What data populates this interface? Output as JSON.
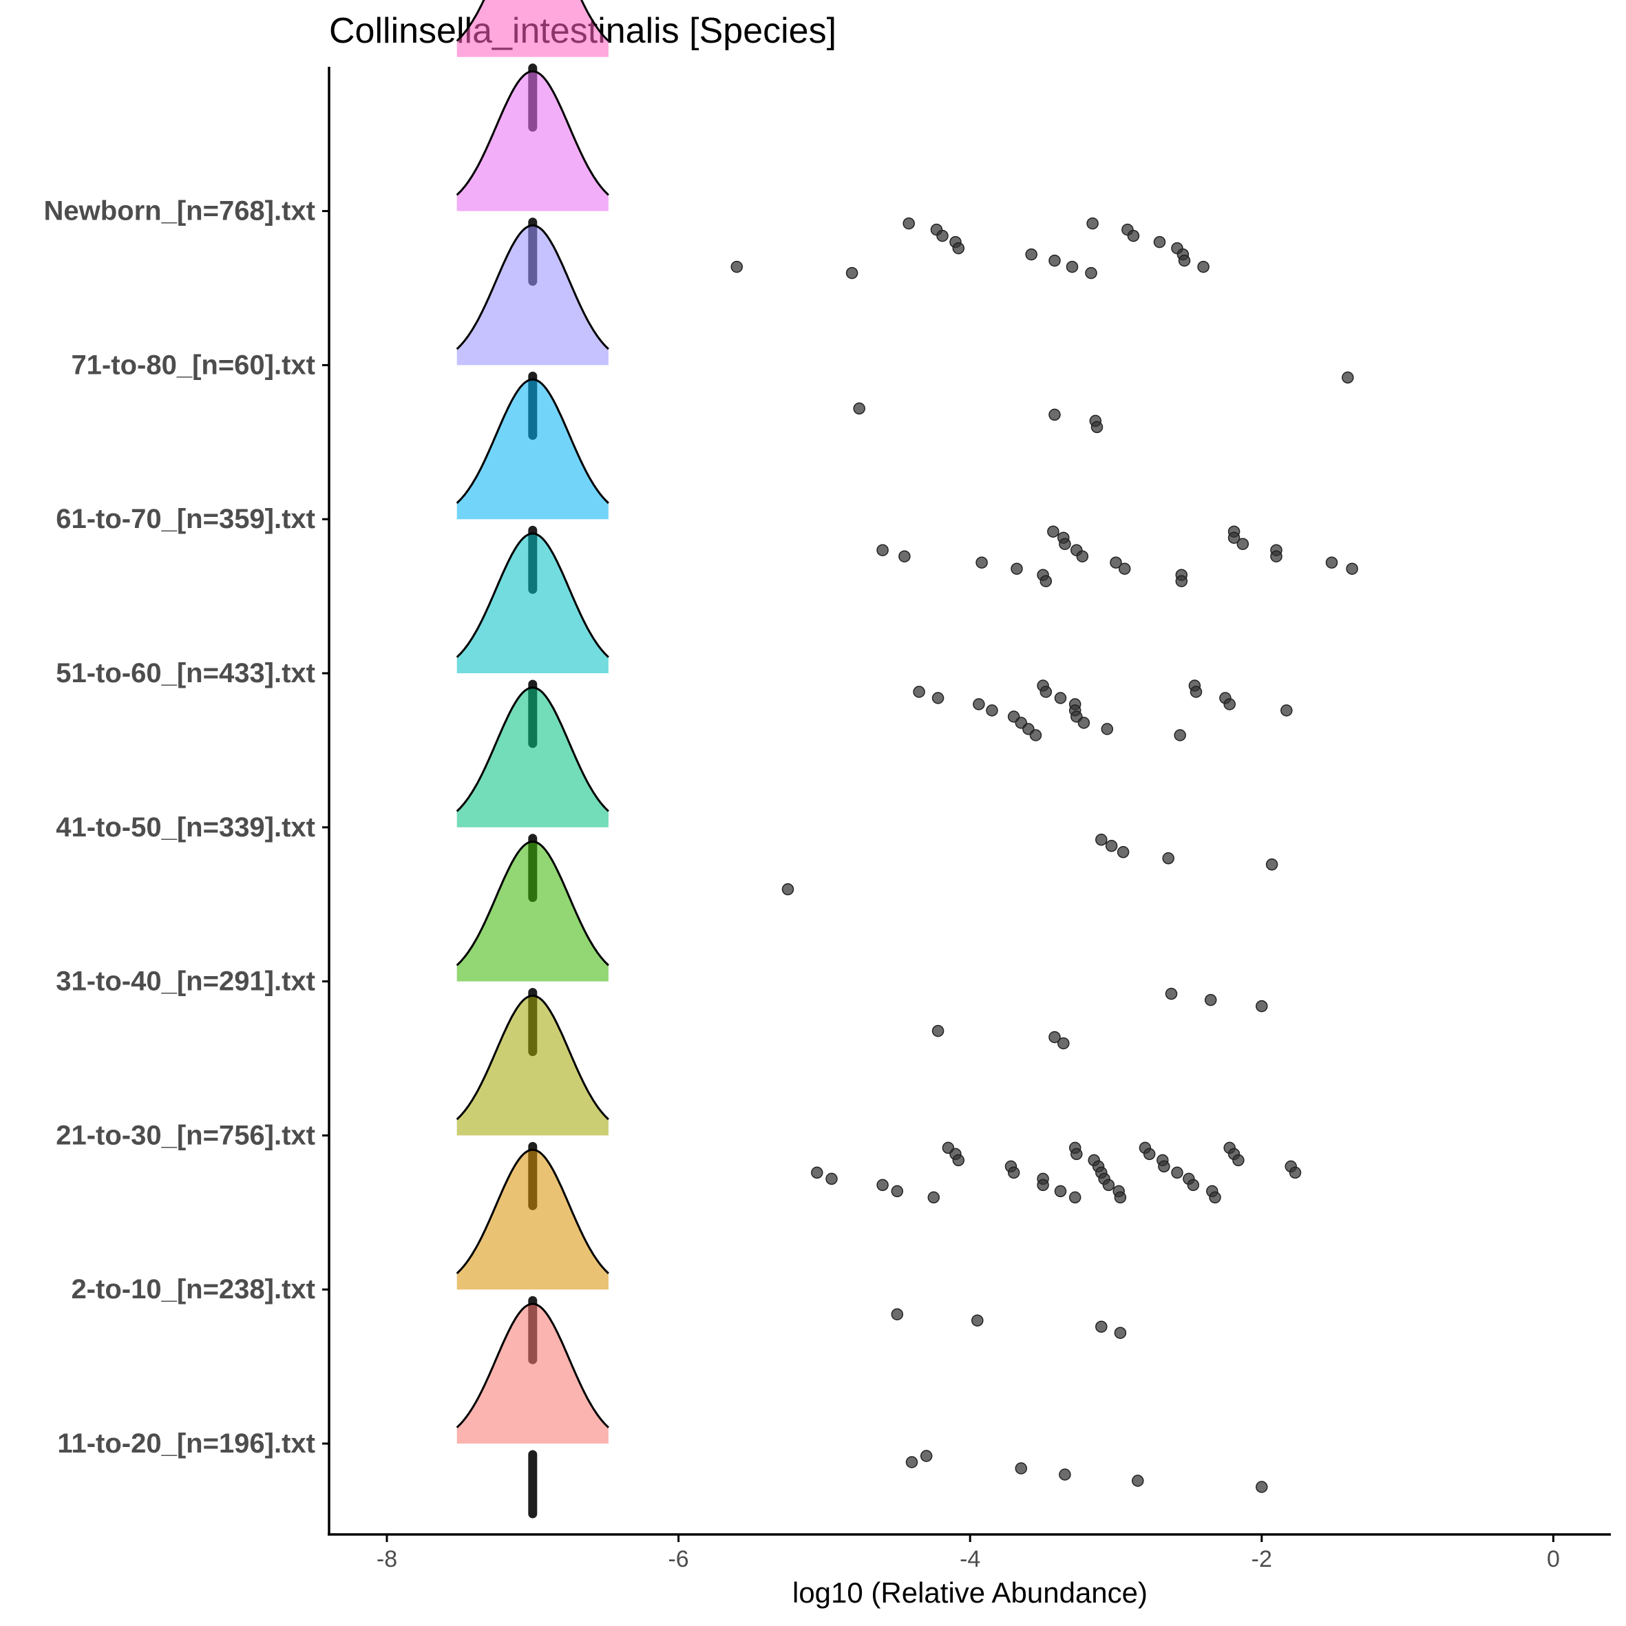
{
  "chart_data": {
    "type": "ridgeline",
    "title": "Collinsella_intestinalis [Species]",
    "xlabel": "log10 (Relative Abundance)",
    "ylabel": "",
    "xlim": [
      -8.2,
      0.2
    ],
    "xticks": [
      -8,
      -6,
      -4,
      -2,
      0
    ],
    "grid": false,
    "legend": "none",
    "density_peak_x": -7,
    "groups": [
      {
        "label": "11-to-20_[n=196].txt",
        "color": "#f8766d",
        "points": [
          -4.3,
          -4.4,
          -3.65,
          -3.35,
          -2.85,
          -2.0
        ]
      },
      {
        "label": "2-to-10_[n=238].txt",
        "color": "#d89000",
        "points": [
          -4.5,
          -3.95,
          -3.1,
          -2.97
        ]
      },
      {
        "label": "21-to-30_[n=756].txt",
        "color": "#a3a500",
        "points": [
          -5.05,
          -4.95,
          -4.6,
          -4.5,
          -4.25,
          -4.15,
          -4.1,
          -4.08,
          -3.72,
          -3.7,
          -3.5,
          -3.5,
          -3.38,
          -3.28,
          -3.28,
          -3.27,
          -3.15,
          -3.12,
          -3.1,
          -3.08,
          -3.05,
          -2.98,
          -2.97,
          -2.8,
          -2.77,
          -2.68,
          -2.67,
          -2.58,
          -2.5,
          -2.47,
          -2.34,
          -2.32,
          -2.22,
          -2.19,
          -2.16,
          -1.8,
          -1.77
        ]
      },
      {
        "label": "31-to-40_[n=291].txt",
        "color": "#39b600",
        "points": [
          -4.22,
          -3.42,
          -3.36,
          -2.62,
          -2.35,
          -2.0
        ]
      },
      {
        "label": "41-to-50_[n=339].txt",
        "color": "#00bf7d",
        "points": [
          -5.25,
          -3.1,
          -3.03,
          -2.95,
          -2.64,
          -1.93
        ]
      },
      {
        "label": "51-to-60_[n=433].txt",
        "color": "#00bfc4",
        "points": [
          -4.35,
          -4.22,
          -3.94,
          -3.85,
          -3.7,
          -3.65,
          -3.6,
          -3.55,
          -3.5,
          -3.48,
          -3.38,
          -3.28,
          -3.28,
          -3.27,
          -3.22,
          -3.06,
          -2.56,
          -2.46,
          -2.45,
          -2.25,
          -2.22,
          -1.83
        ]
      },
      {
        "label": "61-to-70_[n=359].txt",
        "color": "#00b0f6",
        "points": [
          -4.6,
          -4.45,
          -3.92,
          -3.68,
          -3.5,
          -3.48,
          -3.43,
          -3.36,
          -3.35,
          -3.27,
          -3.23,
          -3.0,
          -2.94,
          -2.55,
          -2.55,
          -2.19,
          -2.19,
          -2.13,
          -1.9,
          -1.9,
          -1.52,
          -1.38
        ]
      },
      {
        "label": "71-to-80_[n=60].txt",
        "color": "#9590ff",
        "points": [
          -4.76,
          -3.42,
          -3.14,
          -3.13,
          -1.41
        ]
      },
      {
        "label": "Newborn_[n=768].txt",
        "color": "#e76bf3",
        "points": [
          -5.6,
          -4.81,
          -4.42,
          -4.23,
          -4.19,
          -4.1,
          -4.08,
          -3.58,
          -3.42,
          -3.3,
          -3.17,
          -3.16,
          -2.92,
          -2.88,
          -2.7,
          -2.58,
          -2.54,
          -2.53,
          -2.4
        ]
      },
      {
        "label": "",
        "color": "#ff61c3",
        "points": []
      }
    ]
  }
}
